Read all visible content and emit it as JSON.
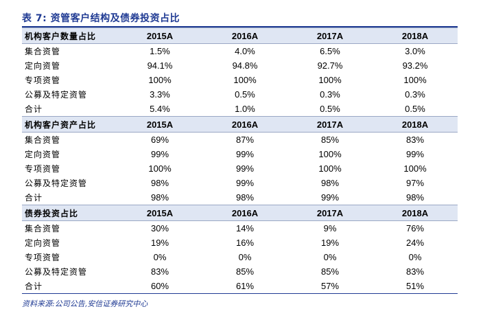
{
  "title": "表 7:  资管客户结构及债券投资占比",
  "source": "资料来源:公司公告,安信证券研究中心",
  "colors": {
    "accent": "#1f3a93",
    "header_bg": "#dfe6f3"
  },
  "sections": [
    {
      "header": "机构客户数量占比",
      "years": [
        "2015A",
        "2016A",
        "2017A",
        "2018A"
      ],
      "rows": [
        {
          "label": "集合资管",
          "values": [
            "1.5%",
            "4.0%",
            "6.5%",
            "3.0%"
          ]
        },
        {
          "label": "定向资管",
          "values": [
            "94.1%",
            "94.8%",
            "92.7%",
            "93.2%"
          ]
        },
        {
          "label": "专项资管",
          "values": [
            "100%",
            "100%",
            "100%",
            "100%"
          ]
        },
        {
          "label": "公募及特定资管",
          "values": [
            "3.3%",
            "0.5%",
            "0.3%",
            "0.3%"
          ]
        },
        {
          "label": "合计",
          "values": [
            "5.4%",
            "1.0%",
            "0.5%",
            "0.5%"
          ]
        }
      ]
    },
    {
      "header": "机构客户资产占比",
      "years": [
        "2015A",
        "2016A",
        "2017A",
        "2018A"
      ],
      "rows": [
        {
          "label": "集合资管",
          "values": [
            "69%",
            "87%",
            "85%",
            "83%"
          ]
        },
        {
          "label": "定向资管",
          "values": [
            "99%",
            "99%",
            "100%",
            "99%"
          ]
        },
        {
          "label": "专项资管",
          "values": [
            "100%",
            "99%",
            "100%",
            "100%"
          ]
        },
        {
          "label": "公募及特定资管",
          "values": [
            "98%",
            "99%",
            "98%",
            "97%"
          ]
        },
        {
          "label": "合计",
          "values": [
            "98%",
            "98%",
            "99%",
            "98%"
          ]
        }
      ]
    },
    {
      "header": "债券投资占比",
      "years": [
        "2015A",
        "2016A",
        "2017A",
        "2018A"
      ],
      "rows": [
        {
          "label": "集合资管",
          "values": [
            "30%",
            "14%",
            "9%",
            "76%"
          ]
        },
        {
          "label": "定向资管",
          "values": [
            "19%",
            "16%",
            "19%",
            "24%"
          ]
        },
        {
          "label": "专项资管",
          "values": [
            "0%",
            "0%",
            "0%",
            "0%"
          ]
        },
        {
          "label": "公募及特定资管",
          "values": [
            "83%",
            "85%",
            "85%",
            "83%"
          ]
        },
        {
          "label": "合计",
          "values": [
            "60%",
            "61%",
            "57%",
            "51%"
          ]
        }
      ]
    }
  ]
}
